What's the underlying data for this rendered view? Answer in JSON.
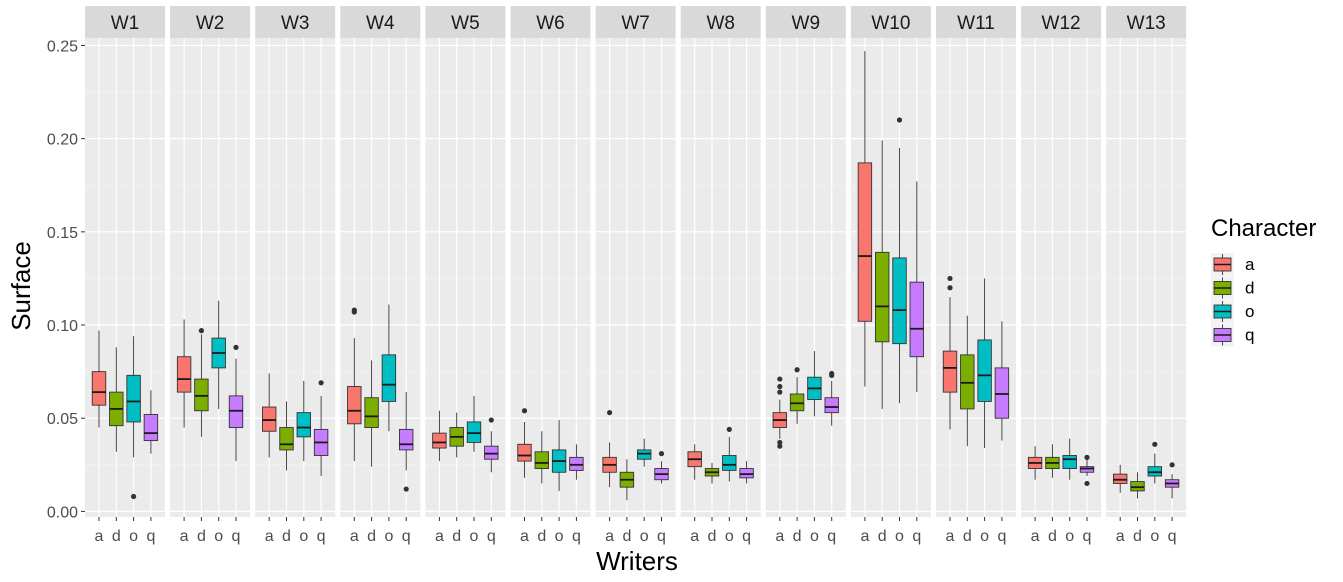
{
  "chart_data": {
    "type": "boxplot",
    "facet_variable": "Writers",
    "xlabel": "Writers",
    "ylabel": "Surface",
    "ylim": [
      -0.003,
      0.254
    ],
    "y_ticks": [
      0.0,
      0.05,
      0.1,
      0.15,
      0.2,
      0.25
    ],
    "y_tick_labels": [
      "0.00",
      "0.05",
      "0.10",
      "0.15",
      "0.20",
      "0.25"
    ],
    "categories": [
      "a",
      "d",
      "o",
      "q"
    ],
    "legend": {
      "title": "Character",
      "position": "right",
      "entries": [
        {
          "label": "a",
          "color": "#F8766D"
        },
        {
          "label": "d",
          "color": "#7CAE00"
        },
        {
          "label": "o",
          "color": "#00BFC4"
        },
        {
          "label": "q",
          "color": "#C77CFF"
        }
      ]
    },
    "panels": [
      {
        "writer": "W1",
        "boxes": [
          {
            "char": "a",
            "min": 0.045,
            "q1": 0.057,
            "median": 0.064,
            "q3": 0.075,
            "max": 0.097,
            "outliers": []
          },
          {
            "char": "d",
            "min": 0.032,
            "q1": 0.046,
            "median": 0.055,
            "q3": 0.064,
            "max": 0.088,
            "outliers": []
          },
          {
            "char": "o",
            "min": 0.029,
            "q1": 0.048,
            "median": 0.059,
            "q3": 0.073,
            "max": 0.094,
            "outliers": [
              0.008
            ]
          },
          {
            "char": "q",
            "min": 0.031,
            "q1": 0.038,
            "median": 0.042,
            "q3": 0.052,
            "max": 0.065,
            "outliers": []
          }
        ]
      },
      {
        "writer": "W2",
        "boxes": [
          {
            "char": "a",
            "min": 0.045,
            "q1": 0.064,
            "median": 0.071,
            "q3": 0.083,
            "max": 0.103,
            "outliers": []
          },
          {
            "char": "d",
            "min": 0.04,
            "q1": 0.054,
            "median": 0.062,
            "q3": 0.071,
            "max": 0.095,
            "outliers": [
              0.097
            ]
          },
          {
            "char": "o",
            "min": 0.055,
            "q1": 0.077,
            "median": 0.085,
            "q3": 0.093,
            "max": 0.113,
            "outliers": []
          },
          {
            "char": "q",
            "min": 0.027,
            "q1": 0.045,
            "median": 0.054,
            "q3": 0.062,
            "max": 0.082,
            "outliers": [
              0.088
            ]
          }
        ]
      },
      {
        "writer": "W3",
        "boxes": [
          {
            "char": "a",
            "min": 0.029,
            "q1": 0.043,
            "median": 0.049,
            "q3": 0.056,
            "max": 0.074,
            "outliers": []
          },
          {
            "char": "d",
            "min": 0.022,
            "q1": 0.033,
            "median": 0.036,
            "q3": 0.045,
            "max": 0.059,
            "outliers": []
          },
          {
            "char": "o",
            "min": 0.027,
            "q1": 0.04,
            "median": 0.045,
            "q3": 0.053,
            "max": 0.07,
            "outliers": []
          },
          {
            "char": "q",
            "min": 0.019,
            "q1": 0.03,
            "median": 0.037,
            "q3": 0.044,
            "max": 0.062,
            "outliers": [
              0.069
            ]
          }
        ]
      },
      {
        "writer": "W4",
        "boxes": [
          {
            "char": "a",
            "min": 0.027,
            "q1": 0.047,
            "median": 0.054,
            "q3": 0.067,
            "max": 0.093,
            "outliers": [
              0.107,
              0.108
            ]
          },
          {
            "char": "d",
            "min": 0.024,
            "q1": 0.045,
            "median": 0.051,
            "q3": 0.061,
            "max": 0.081,
            "outliers": []
          },
          {
            "char": "o",
            "min": 0.043,
            "q1": 0.059,
            "median": 0.068,
            "q3": 0.084,
            "max": 0.111,
            "outliers": []
          },
          {
            "char": "q",
            "min": 0.022,
            "q1": 0.033,
            "median": 0.036,
            "q3": 0.044,
            "max": 0.064,
            "outliers": [
              0.012
            ]
          }
        ]
      },
      {
        "writer": "W5",
        "boxes": [
          {
            "char": "a",
            "min": 0.027,
            "q1": 0.034,
            "median": 0.037,
            "q3": 0.042,
            "max": 0.054,
            "outliers": []
          },
          {
            "char": "d",
            "min": 0.029,
            "q1": 0.035,
            "median": 0.04,
            "q3": 0.045,
            "max": 0.053,
            "outliers": []
          },
          {
            "char": "o",
            "min": 0.032,
            "q1": 0.037,
            "median": 0.042,
            "q3": 0.048,
            "max": 0.062,
            "outliers": []
          },
          {
            "char": "q",
            "min": 0.021,
            "q1": 0.028,
            "median": 0.031,
            "q3": 0.035,
            "max": 0.043,
            "outliers": [
              0.049
            ]
          }
        ]
      },
      {
        "writer": "W6",
        "boxes": [
          {
            "char": "a",
            "min": 0.018,
            "q1": 0.027,
            "median": 0.03,
            "q3": 0.036,
            "max": 0.048,
            "outliers": [
              0.054
            ]
          },
          {
            "char": "d",
            "min": 0.015,
            "q1": 0.023,
            "median": 0.026,
            "q3": 0.032,
            "max": 0.043,
            "outliers": []
          },
          {
            "char": "o",
            "min": 0.011,
            "q1": 0.021,
            "median": 0.027,
            "q3": 0.033,
            "max": 0.049,
            "outliers": []
          },
          {
            "char": "q",
            "min": 0.017,
            "q1": 0.022,
            "median": 0.025,
            "q3": 0.029,
            "max": 0.036,
            "outliers": []
          }
        ]
      },
      {
        "writer": "W7",
        "boxes": [
          {
            "char": "a",
            "min": 0.013,
            "q1": 0.021,
            "median": 0.025,
            "q3": 0.029,
            "max": 0.037,
            "outliers": [
              0.053
            ]
          },
          {
            "char": "d",
            "min": 0.006,
            "q1": 0.013,
            "median": 0.017,
            "q3": 0.021,
            "max": 0.028,
            "outliers": []
          },
          {
            "char": "o",
            "min": 0.024,
            "q1": 0.028,
            "median": 0.031,
            "q3": 0.033,
            "max": 0.039,
            "outliers": []
          },
          {
            "char": "q",
            "min": 0.015,
            "q1": 0.017,
            "median": 0.02,
            "q3": 0.023,
            "max": 0.027,
            "outliers": [
              0.031
            ]
          }
        ]
      },
      {
        "writer": "W8",
        "boxes": [
          {
            "char": "a",
            "min": 0.017,
            "q1": 0.024,
            "median": 0.028,
            "q3": 0.032,
            "max": 0.036,
            "outliers": []
          },
          {
            "char": "d",
            "min": 0.015,
            "q1": 0.019,
            "median": 0.021,
            "q3": 0.023,
            "max": 0.026,
            "outliers": []
          },
          {
            "char": "o",
            "min": 0.016,
            "q1": 0.022,
            "median": 0.025,
            "q3": 0.03,
            "max": 0.04,
            "outliers": [
              0.044
            ]
          },
          {
            "char": "q",
            "min": 0.015,
            "q1": 0.018,
            "median": 0.02,
            "q3": 0.023,
            "max": 0.027,
            "outliers": []
          }
        ]
      },
      {
        "writer": "W9",
        "boxes": [
          {
            "char": "a",
            "min": 0.039,
            "q1": 0.045,
            "median": 0.049,
            "q3": 0.053,
            "max": 0.06,
            "outliers": [
              0.064,
              0.067,
              0.071,
              0.035,
              0.037
            ]
          },
          {
            "char": "d",
            "min": 0.047,
            "q1": 0.054,
            "median": 0.058,
            "q3": 0.063,
            "max": 0.072,
            "outliers": [
              0.076
            ]
          },
          {
            "char": "o",
            "min": 0.051,
            "q1": 0.06,
            "median": 0.066,
            "q3": 0.072,
            "max": 0.086,
            "outliers": []
          },
          {
            "char": "q",
            "min": 0.046,
            "q1": 0.053,
            "median": 0.056,
            "q3": 0.061,
            "max": 0.07,
            "outliers": [
              0.073,
              0.074
            ]
          }
        ]
      },
      {
        "writer": "W10",
        "boxes": [
          {
            "char": "a",
            "min": 0.067,
            "q1": 0.102,
            "median": 0.137,
            "q3": 0.187,
            "max": 0.247,
            "outliers": []
          },
          {
            "char": "d",
            "min": 0.055,
            "q1": 0.091,
            "median": 0.11,
            "q3": 0.139,
            "max": 0.199,
            "outliers": []
          },
          {
            "char": "o",
            "min": 0.058,
            "q1": 0.09,
            "median": 0.108,
            "q3": 0.136,
            "max": 0.195,
            "outliers": [
              0.21
            ]
          },
          {
            "char": "q",
            "min": 0.064,
            "q1": 0.083,
            "median": 0.098,
            "q3": 0.123,
            "max": 0.177,
            "outliers": []
          }
        ]
      },
      {
        "writer": "W11",
        "boxes": [
          {
            "char": "a",
            "min": 0.044,
            "q1": 0.064,
            "median": 0.077,
            "q3": 0.086,
            "max": 0.115,
            "outliers": [
              0.12,
              0.125
            ]
          },
          {
            "char": "d",
            "min": 0.035,
            "q1": 0.055,
            "median": 0.069,
            "q3": 0.084,
            "max": 0.105,
            "outliers": []
          },
          {
            "char": "o",
            "min": 0.034,
            "q1": 0.059,
            "median": 0.073,
            "q3": 0.092,
            "max": 0.125,
            "outliers": []
          },
          {
            "char": "q",
            "min": 0.038,
            "q1": 0.05,
            "median": 0.063,
            "q3": 0.077,
            "max": 0.102,
            "outliers": []
          }
        ]
      },
      {
        "writer": "W12",
        "boxes": [
          {
            "char": "a",
            "min": 0.017,
            "q1": 0.023,
            "median": 0.026,
            "q3": 0.029,
            "max": 0.035,
            "outliers": []
          },
          {
            "char": "d",
            "min": 0.018,
            "q1": 0.023,
            "median": 0.026,
            "q3": 0.029,
            "max": 0.036,
            "outliers": []
          },
          {
            "char": "o",
            "min": 0.017,
            "q1": 0.023,
            "median": 0.028,
            "q3": 0.03,
            "max": 0.039,
            "outliers": []
          },
          {
            "char": "q",
            "min": 0.019,
            "q1": 0.021,
            "median": 0.023,
            "q3": 0.024,
            "max": 0.028,
            "outliers": [
              0.029,
              0.015
            ]
          }
        ]
      },
      {
        "writer": "W13",
        "boxes": [
          {
            "char": "a",
            "min": 0.01,
            "q1": 0.015,
            "median": 0.017,
            "q3": 0.02,
            "max": 0.025,
            "outliers": []
          },
          {
            "char": "d",
            "min": 0.007,
            "q1": 0.011,
            "median": 0.013,
            "q3": 0.016,
            "max": 0.021,
            "outliers": []
          },
          {
            "char": "o",
            "min": 0.015,
            "q1": 0.019,
            "median": 0.021,
            "q3": 0.024,
            "max": 0.031,
            "outliers": [
              0.036
            ]
          },
          {
            "char": "q",
            "min": 0.007,
            "q1": 0.013,
            "median": 0.015,
            "q3": 0.017,
            "max": 0.02,
            "outliers": [
              0.025
            ]
          }
        ]
      }
    ]
  }
}
